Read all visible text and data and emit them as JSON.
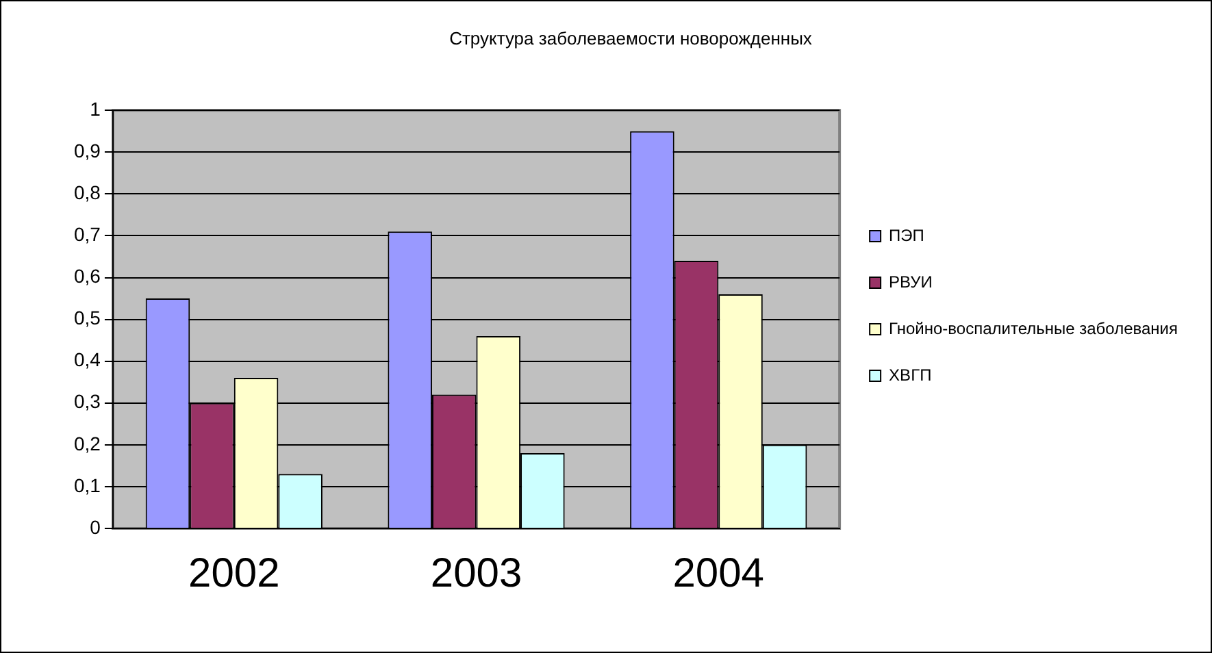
{
  "chart_data": {
    "type": "bar",
    "title": "Структура заболеваемости новорожденных",
    "categories": [
      "2002",
      "2003",
      "2004"
    ],
    "series": [
      {
        "name": "ПЭП",
        "color": "#9999ff",
        "values": [
          0.55,
          0.71,
          0.95
        ]
      },
      {
        "name": "РВУИ",
        "color": "#993366",
        "values": [
          0.3,
          0.32,
          0.64
        ]
      },
      {
        "name": "Гнойно-воспалительные заболевания",
        "color": "#ffffcc",
        "values": [
          0.36,
          0.46,
          0.56
        ]
      },
      {
        "name": "ХВГП",
        "color": "#ccffff",
        "values": [
          0.13,
          0.18,
          0.2
        ]
      }
    ],
    "ylim": [
      0,
      1
    ],
    "yticks": [
      0,
      {
        "value": 0.1,
        "label": "0,1"
      },
      {
        "value": 0.2,
        "label": "0,2"
      },
      {
        "value": 0.3,
        "label": "0,3"
      },
      {
        "value": 0.4,
        "label": "0,4"
      },
      {
        "value": 0.5,
        "label": "0,5"
      },
      {
        "value": 0.6,
        "label": "0,6"
      },
      {
        "value": 0.7,
        "label": "0,7"
      },
      {
        "value": 0.8,
        "label": "0,8"
      },
      {
        "value": 0.9,
        "label": "0,9"
      },
      1
    ],
    "grid": "y",
    "legend": "right"
  }
}
